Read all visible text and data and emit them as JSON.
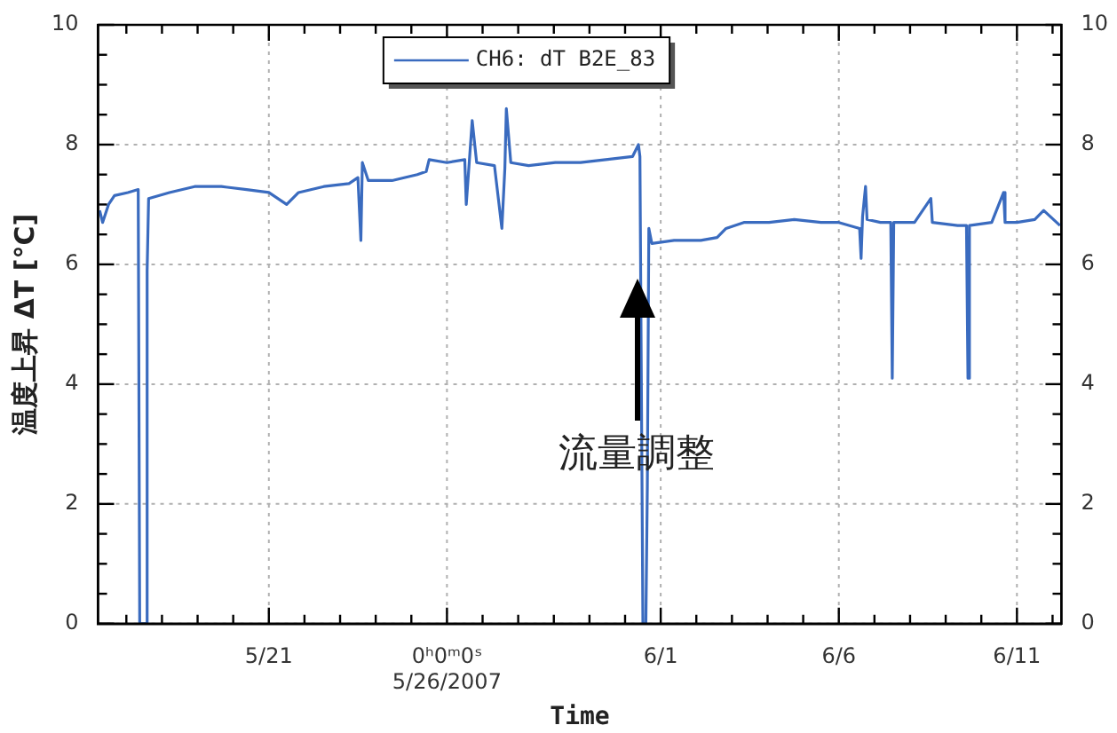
{
  "chart_data": {
    "type": "line",
    "xlabel": "Time",
    "ylabel": "温度上昇 ΔT [°C]",
    "x": [
      "2007-05-16T06:00",
      "2007-05-16T08:00",
      "2007-05-16T12:00",
      "2007-05-16T16:00",
      "2007-05-17T01:00",
      "2007-05-17T08:00",
      "2007-05-17T09:00",
      "2007-05-17T13:00",
      "2007-05-17T14:00",
      "2007-05-17T15:00",
      "2007-05-18T05:00",
      "2007-05-18T22:00",
      "2007-05-19T16:00",
      "2007-05-20T09:00",
      "2007-05-21T00:00",
      "2007-05-21T12:00",
      "2007-05-21T20:00",
      "2007-05-22T13:00",
      "2007-05-23T06:00",
      "2007-05-23T12:00",
      "2007-05-23T14:00",
      "2007-05-23T15:00",
      "2007-05-23T19:00",
      "2007-05-24T11:00",
      "2007-05-25T04:00",
      "2007-05-25T10:00",
      "2007-05-25T12:00",
      "2007-05-26T00:00",
      "2007-05-26T12:00",
      "2007-05-26T13:00",
      "2007-05-26T15:00",
      "2007-05-26T17:00",
      "2007-05-26T20:00",
      "2007-05-27T08:00",
      "2007-05-27T13:00",
      "2007-05-27T15:00",
      "2007-05-27T16:00",
      "2007-05-27T19:00",
      "2007-05-28T07:00",
      "2007-05-29T01:00",
      "2007-05-29T18:00",
      "2007-05-30T11:00",
      "2007-05-31T05:00",
      "2007-05-31T09:00",
      "2007-05-31T10:00",
      "2007-05-31T12:00",
      "2007-05-31T14:00",
      "2007-05-31T15:00",
      "2007-05-31T16:00",
      "2007-05-31T18:00",
      "2007-06-01T09:00",
      "2007-06-02T03:00",
      "2007-06-02T14:00",
      "2007-06-02T20:00",
      "2007-06-03T08:00",
      "2007-06-04T01:00",
      "2007-06-04T18:00",
      "2007-06-05T12:00",
      "2007-06-06T00:00",
      "2007-06-06T14:00",
      "2007-06-06T15:00",
      "2007-06-06T16:00",
      "2007-06-06T18:00",
      "2007-06-06T19:00",
      "2007-06-07T04:00",
      "2007-06-07T11:00",
      "2007-06-07T12:00",
      "2007-06-07T13:00",
      "2007-06-08T03:00",
      "2007-06-08T14:00",
      "2007-06-08T15:00",
      "2007-06-09T08:00",
      "2007-06-09T14:00",
      "2007-06-09T15:00",
      "2007-06-09T16:00",
      "2007-06-10T07:00",
      "2007-06-10T15:00",
      "2007-06-10T16:00",
      "2007-06-11T00:00",
      "2007-06-11T12:00",
      "2007-06-11T18:00",
      "2007-06-12T05:00"
    ],
    "series": [
      {
        "name": "CH6: dT B2E_83",
        "color": "#3a6bbf",
        "values": [
          6.9,
          6.7,
          7.0,
          7.15,
          7.2,
          7.25,
          0,
          0,
          5.9,
          7.1,
          7.2,
          7.3,
          7.3,
          7.25,
          7.2,
          7.0,
          7.2,
          7.3,
          7.35,
          7.45,
          6.4,
          7.7,
          7.4,
          7.4,
          7.5,
          7.55,
          7.75,
          7.7,
          7.75,
          7.0,
          7.7,
          8.4,
          7.7,
          7.65,
          6.6,
          7.6,
          8.6,
          7.7,
          7.65,
          7.7,
          7.7,
          7.75,
          7.8,
          8.0,
          7.8,
          0,
          0,
          2.3,
          6.6,
          6.35,
          6.4,
          6.4,
          6.45,
          6.6,
          6.7,
          6.7,
          6.75,
          6.7,
          6.7,
          6.6,
          6.1,
          6.8,
          7.3,
          6.75,
          6.7,
          6.7,
          4.1,
          6.7,
          6.7,
          7.1,
          6.7,
          6.65,
          6.65,
          4.1,
          6.65,
          6.7,
          7.2,
          6.7,
          6.7,
          6.75,
          6.9,
          6.65
        ]
      }
    ],
    "xlim": [
      "2007-05-16T05:00",
      "2007-06-12T06:00"
    ],
    "xticks": [
      {
        "value": "2007-05-17",
        "label": null
      },
      {
        "value": "2007-05-18",
        "label": null
      },
      {
        "value": "2007-05-19",
        "label": null
      },
      {
        "value": "2007-05-20",
        "label": null
      },
      {
        "value": "2007-05-21",
        "label": "5/21"
      },
      {
        "value": "2007-05-22",
        "label": null
      },
      {
        "value": "2007-05-23",
        "label": null
      },
      {
        "value": "2007-05-24",
        "label": null
      },
      {
        "value": "2007-05-25",
        "label": null
      },
      {
        "value": "2007-05-26",
        "label": "0ʰ0ᵐ0ˢ\n5/26/2007"
      },
      {
        "value": "2007-05-27",
        "label": null
      },
      {
        "value": "2007-05-28",
        "label": null
      },
      {
        "value": "2007-05-29",
        "label": null
      },
      {
        "value": "2007-05-30",
        "label": null
      },
      {
        "value": "2007-05-31",
        "label": null
      },
      {
        "value": "2007-06-01",
        "label": "6/1"
      },
      {
        "value": "2007-06-02",
        "label": null
      },
      {
        "value": "2007-06-03",
        "label": null
      },
      {
        "value": "2007-06-04",
        "label": null
      },
      {
        "value": "2007-06-05",
        "label": null
      },
      {
        "value": "2007-06-06",
        "label": "6/6"
      },
      {
        "value": "2007-06-07",
        "label": null
      },
      {
        "value": "2007-06-08",
        "label": null
      },
      {
        "value": "2007-06-09",
        "label": null
      },
      {
        "value": "2007-06-10",
        "label": null
      },
      {
        "value": "2007-06-11",
        "label": "6/11"
      },
      {
        "value": "2007-06-12",
        "label": null
      }
    ],
    "ylim": [
      0,
      10
    ],
    "yticks": [
      0,
      {
        "value": 0.5,
        "label": null
      },
      {
        "value": 1,
        "label": null
      },
      {
        "value": 1.5,
        "label": null
      },
      2,
      {
        "value": 2.5,
        "label": null
      },
      {
        "value": 3,
        "label": null
      },
      {
        "value": 3.5,
        "label": null
      },
      4,
      {
        "value": 4.5,
        "label": null
      },
      {
        "value": 5,
        "label": null
      },
      {
        "value": 5.5,
        "label": null
      },
      6,
      {
        "value": 6.5,
        "label": null
      },
      {
        "value": 7,
        "label": null
      },
      {
        "value": 7.5,
        "label": null
      },
      8,
      {
        "value": 8.5,
        "label": null
      },
      {
        "value": 9,
        "label": null
      },
      {
        "value": 9.5,
        "label": null
      },
      10
    ],
    "y2lim": [
      0,
      10
    ],
    "y2ticks": [
      0,
      {
        "value": 0.5,
        "label": null
      },
      {
        "value": 1,
        "label": null
      },
      {
        "value": 1.5,
        "label": null
      },
      2,
      {
        "value": 2.5,
        "label": null
      },
      {
        "value": 3,
        "label": null
      },
      {
        "value": 3.5,
        "label": null
      },
      4,
      {
        "value": 4.5,
        "label": null
      },
      {
        "value": 5,
        "label": null
      },
      {
        "value": 5.5,
        "label": null
      },
      6,
      {
        "value": 6.5,
        "label": null
      },
      {
        "value": 7,
        "label": null
      },
      {
        "value": 7.5,
        "label": null
      },
      8,
      {
        "value": 8.5,
        "label": null
      },
      {
        "value": 9,
        "label": null
      },
      {
        "value": 9.5,
        "label": null
      },
      10
    ],
    "annotations": [
      {
        "text": "流量調整",
        "x": "2007-05-31T08:00",
        "y": 2.8
      }
    ],
    "grid": true,
    "legend": "top",
    "marker": "none",
    "line_style": "solid"
  }
}
